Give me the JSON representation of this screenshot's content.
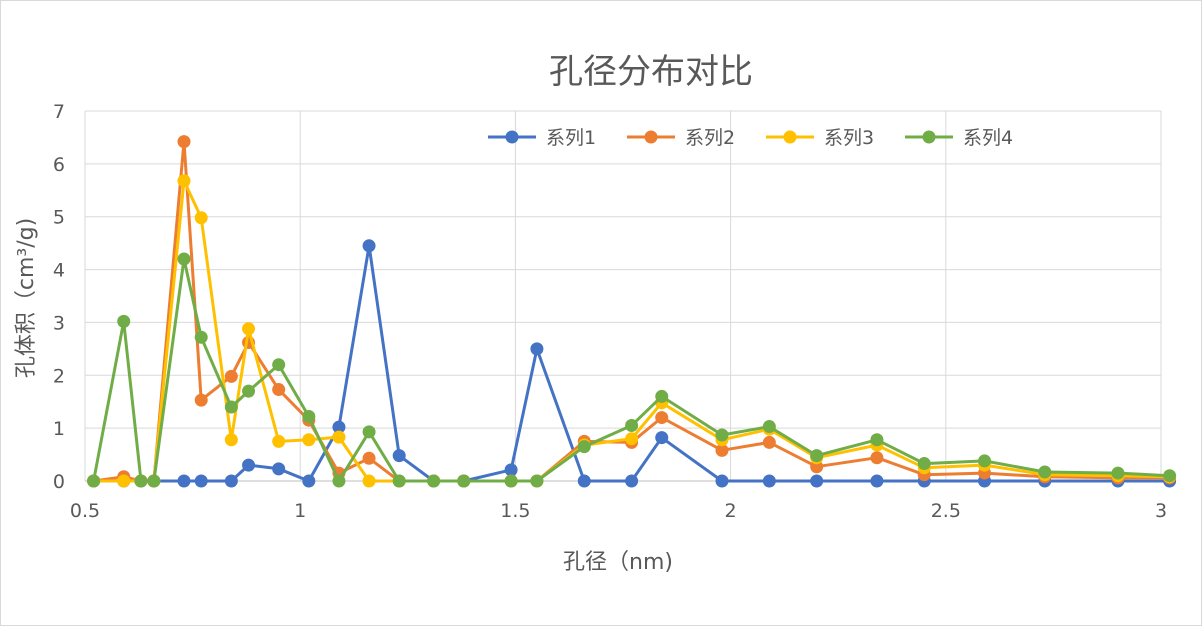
{
  "chart_data": {
    "type": "scatter",
    "title": "孔径分布对比",
    "xlabel": "孔径（nm)",
    "ylabel": "孔体积（cm³/g)",
    "xlim": [
      0.5,
      3
    ],
    "ylim": [
      0,
      7
    ],
    "x_ticks": [
      "0.5",
      "1",
      "1.5",
      "2",
      "2.5",
      "3"
    ],
    "y_ticks": [
      "0",
      "1",
      "2",
      "3",
      "4",
      "5",
      "6",
      "7"
    ],
    "grid": true,
    "legend_position": "top-right",
    "series": [
      {
        "name": "系列1",
        "color": "#4472C4",
        "points": [
          [
            0.52,
            0
          ],
          [
            0.59,
            0
          ],
          [
            0.63,
            0
          ],
          [
            0.66,
            0
          ],
          [
            0.73,
            0
          ],
          [
            0.77,
            0
          ],
          [
            0.84,
            0
          ],
          [
            0.88,
            0.3
          ],
          [
            0.95,
            0.23
          ],
          [
            1.02,
            0
          ],
          [
            1.09,
            1.02
          ],
          [
            1.16,
            4.45
          ],
          [
            1.23,
            0.48
          ],
          [
            1.31,
            0
          ],
          [
            1.38,
            0
          ],
          [
            1.49,
            0.21
          ],
          [
            1.55,
            2.5
          ],
          [
            1.66,
            0
          ],
          [
            1.77,
            0
          ],
          [
            1.84,
            0.82
          ],
          [
            1.98,
            0
          ],
          [
            2.09,
            0
          ],
          [
            2.2,
            0
          ],
          [
            2.34,
            0
          ],
          [
            2.45,
            0
          ],
          [
            2.59,
            0
          ],
          [
            2.73,
            0
          ],
          [
            2.9,
            0
          ],
          [
            3.02,
            0
          ]
        ]
      },
      {
        "name": "系列2",
        "color": "#ED7D31",
        "points": [
          [
            0.52,
            0
          ],
          [
            0.59,
            0.08
          ],
          [
            0.63,
            0
          ],
          [
            0.66,
            0
          ],
          [
            0.73,
            6.42
          ],
          [
            0.77,
            1.53
          ],
          [
            0.84,
            1.98
          ],
          [
            0.88,
            2.62
          ],
          [
            0.95,
            1.73
          ],
          [
            1.02,
            1.15
          ],
          [
            1.09,
            0.15
          ],
          [
            1.16,
            0.43
          ],
          [
            1.23,
            0
          ],
          [
            1.31,
            0
          ],
          [
            1.38,
            0
          ],
          [
            1.49,
            0
          ],
          [
            1.55,
            0
          ],
          [
            1.66,
            0.75
          ],
          [
            1.77,
            0.73
          ],
          [
            1.84,
            1.2
          ],
          [
            1.98,
            0.58
          ],
          [
            2.09,
            0.73
          ],
          [
            2.2,
            0.27
          ],
          [
            2.34,
            0.44
          ],
          [
            2.45,
            0.12
          ],
          [
            2.59,
            0.15
          ],
          [
            2.73,
            0.08
          ],
          [
            2.9,
            0.06
          ],
          [
            3.02,
            0.06
          ]
        ]
      },
      {
        "name": "系列3",
        "color": "#FFC000",
        "points": [
          [
            0.52,
            0
          ],
          [
            0.59,
            0
          ],
          [
            0.63,
            0
          ],
          [
            0.66,
            0
          ],
          [
            0.73,
            5.68
          ],
          [
            0.77,
            4.98
          ],
          [
            0.84,
            0.78
          ],
          [
            0.88,
            2.88
          ],
          [
            0.95,
            0.75
          ],
          [
            1.02,
            0.78
          ],
          [
            1.09,
            0.83
          ],
          [
            1.16,
            0
          ],
          [
            1.23,
            0
          ],
          [
            1.31,
            0
          ],
          [
            1.38,
            0
          ],
          [
            1.49,
            0
          ],
          [
            1.55,
            0
          ],
          [
            1.66,
            0.68
          ],
          [
            1.77,
            0.8
          ],
          [
            1.84,
            1.48
          ],
          [
            1.98,
            0.78
          ],
          [
            2.09,
            0.98
          ],
          [
            2.2,
            0.44
          ],
          [
            2.34,
            0.68
          ],
          [
            2.45,
            0.25
          ],
          [
            2.59,
            0.3
          ],
          [
            2.73,
            0.12
          ],
          [
            2.9,
            0.1
          ],
          [
            3.02,
            0.08
          ]
        ]
      },
      {
        "name": "系列4",
        "color": "#70AD47",
        "points": [
          [
            0.52,
            0
          ],
          [
            0.59,
            3.02
          ],
          [
            0.63,
            0
          ],
          [
            0.66,
            0
          ],
          [
            0.73,
            4.2
          ],
          [
            0.77,
            2.72
          ],
          [
            0.84,
            1.4
          ],
          [
            0.88,
            1.7
          ],
          [
            0.95,
            2.2
          ],
          [
            1.02,
            1.22
          ],
          [
            1.09,
            0
          ],
          [
            1.16,
            0.93
          ],
          [
            1.23,
            0
          ],
          [
            1.31,
            0
          ],
          [
            1.38,
            0
          ],
          [
            1.49,
            0
          ],
          [
            1.55,
            0
          ],
          [
            1.66,
            0.65
          ],
          [
            1.77,
            1.05
          ],
          [
            1.84,
            1.6
          ],
          [
            1.98,
            0.87
          ],
          [
            2.09,
            1.03
          ],
          [
            2.2,
            0.48
          ],
          [
            2.34,
            0.78
          ],
          [
            2.45,
            0.33
          ],
          [
            2.59,
            0.38
          ],
          [
            2.73,
            0.17
          ],
          [
            2.9,
            0.15
          ],
          [
            3.02,
            0.1
          ]
        ]
      }
    ]
  }
}
